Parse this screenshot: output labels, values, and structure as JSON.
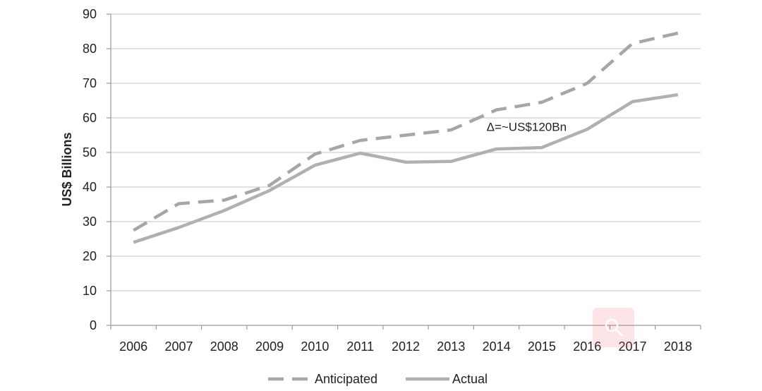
{
  "colors": {
    "series_anticipated": "#a6a6a6",
    "series_actual": "#b0b0b0",
    "gridline": "#cfcfcf",
    "axis": "#9a9a9a",
    "zoom_button": "#f26e78"
  },
  "zoom_icon": "magnifier-icon",
  "chart_data": {
    "type": "line",
    "title": "",
    "xlabel": "",
    "ylabel": "US$ Billions",
    "ylim": [
      0,
      90
    ],
    "yticks": [
      "0",
      "10",
      "20",
      "30",
      "40",
      "50",
      "60",
      "70",
      "80",
      "90"
    ],
    "categories": [
      "2006",
      "2007",
      "2008",
      "2009",
      "2010",
      "2011",
      "2012",
      "2013",
      "2014",
      "2015",
      "2016",
      "2017",
      "2018"
    ],
    "grid": true,
    "legend_position": "bottom",
    "series": [
      {
        "name": "Anticipated",
        "style": "dashed",
        "values": [
          27.5,
          35.2,
          36.2,
          40.5,
          49.5,
          53.5,
          55.0,
          56.5,
          62.3,
          64.5,
          70.0,
          81.5,
          84.5
        ]
      },
      {
        "name": "Actual",
        "style": "solid",
        "values": [
          24.0,
          28.3,
          33.2,
          39.0,
          46.3,
          49.8,
          47.2,
          47.4,
          51.0,
          51.4,
          56.7,
          64.7,
          66.7
        ]
      }
    ],
    "annotations": [
      {
        "text": "Δ=~US$120Bn",
        "x": "2014",
        "y": 57.5
      }
    ]
  }
}
